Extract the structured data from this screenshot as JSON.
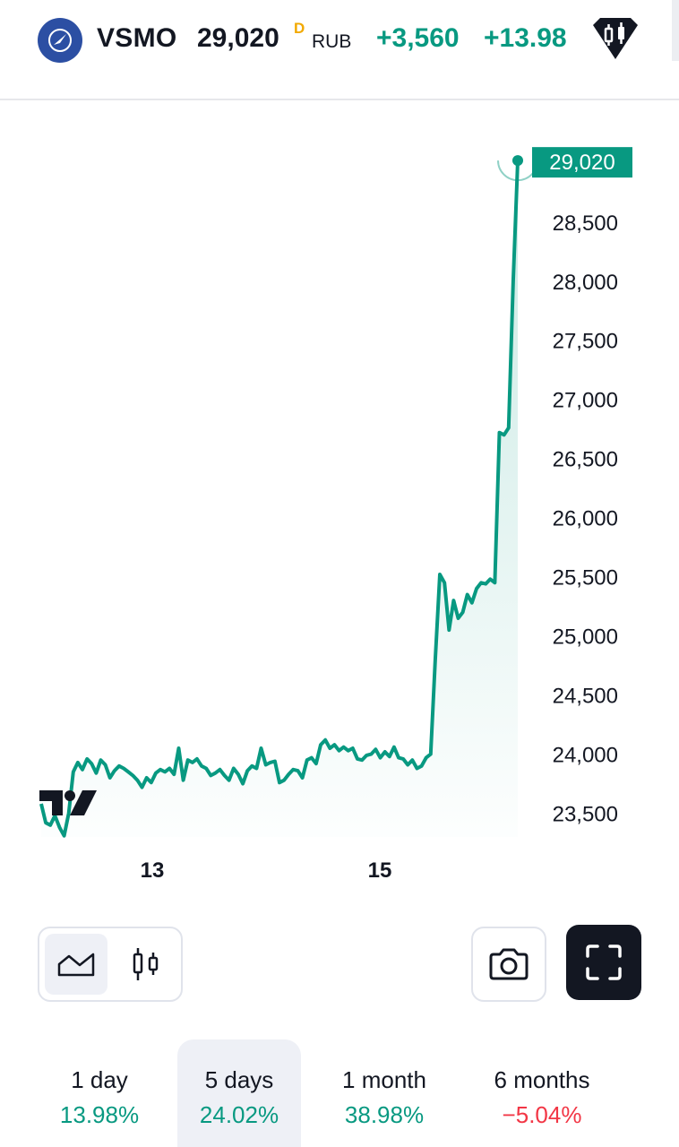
{
  "header": {
    "ticker": "VSMO",
    "price": "29,020",
    "price_flag": "D",
    "currency": "RUB",
    "change_abs": "+3,560",
    "change_pct": "+13.98"
  },
  "chart_data": {
    "type": "area",
    "x_tick_labels": [
      "13",
      "15"
    ],
    "y_tick_labels": [
      "28,500",
      "28,000",
      "27,500",
      "27,000",
      "26,500",
      "26,000",
      "25,500",
      "25,000",
      "24,500",
      "24,000",
      "23,500"
    ],
    "y_ticks": [
      28500,
      28000,
      27500,
      27000,
      26500,
      26000,
      25500,
      25000,
      24500,
      24000,
      23500
    ],
    "ylim": [
      23300,
      29150
    ],
    "last_value": 29020,
    "last_value_label": "29,020",
    "line_color": "#089981",
    "values": [
      23580,
      23420,
      23400,
      23480,
      23380,
      23310,
      23500,
      23850,
      23930,
      23870,
      23960,
      23920,
      23840,
      23950,
      23910,
      23800,
      23860,
      23900,
      23880,
      23850,
      23820,
      23780,
      23720,
      23800,
      23760,
      23840,
      23870,
      23850,
      23880,
      23830,
      24050,
      23780,
      23950,
      23930,
      23960,
      23900,
      23880,
      23820,
      23840,
      23870,
      23820,
      23780,
      23880,
      23830,
      23750,
      23860,
      23900,
      23880,
      24050,
      23910,
      23930,
      23940,
      23760,
      23780,
      23830,
      23870,
      23860,
      23800,
      23950,
      23970,
      23920,
      24080,
      24120,
      24050,
      24080,
      24030,
      24060,
      24030,
      24050,
      23960,
      23950,
      23990,
      24000,
      24040,
      23970,
      24020,
      23980,
      24060,
      23970,
      23960,
      23910,
      23950,
      23880,
      23900,
      23970,
      24000,
      24800,
      25520,
      25450,
      25050,
      25300,
      25150,
      25200,
      25350,
      25280,
      25400,
      25450,
      25440,
      25480,
      25450,
      26720,
      26700,
      26760,
      28000,
      29020
    ]
  },
  "controls": {
    "chart_type_area": "area-chart-icon",
    "chart_type_candles": "candles-icon",
    "snapshot": "camera-icon",
    "fullscreen": "fullscreen-icon"
  },
  "periods": [
    {
      "label": "1 day",
      "value": "13.98%",
      "trend": "positive"
    },
    {
      "label": "5 days",
      "value": "24.02%",
      "trend": "positive",
      "active": true
    },
    {
      "label": "1 month",
      "value": "38.98%",
      "trend": "positive"
    },
    {
      "label": "6 months",
      "value": "−5.04%",
      "trend": "negative"
    }
  ],
  "colors": {
    "accent_green": "#089981",
    "negative_red": "#f23645",
    "logo_blue": "#2c4fa3",
    "dark": "#131722"
  }
}
